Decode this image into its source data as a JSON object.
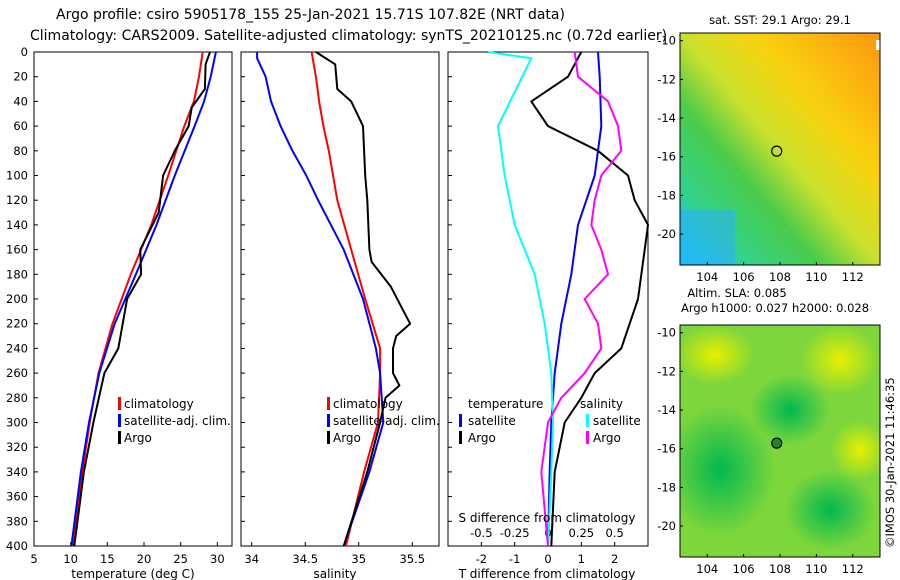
{
  "header": {
    "title_line1": "Argo profile: csiro 5905178_155 25-Jan-2021 15.71S 107.82E (NRT data)",
    "title_line2": "Climatology: CARS2009. Satellite-adjusted climatology: synTS_20210125.nc (0.72d earlier)"
  },
  "colors": {
    "climatology": "#ff0000",
    "satellite": "#0000ff",
    "argo": "#000000",
    "salinity_diff": "#ff00ff",
    "sat_sal": "#00ffff"
  },
  "chart_data": [
    {
      "type": "line",
      "panel": "temperature",
      "xlabel": "temperature (deg C)",
      "ylabel": "",
      "xlim": [
        5,
        32
      ],
      "ylim": [
        400,
        0
      ],
      "xticks": [
        "5",
        "10",
        "15",
        "20",
        "25",
        "30"
      ],
      "yticks": [
        "0",
        "20",
        "40",
        "60",
        "80",
        "100",
        "120",
        "140",
        "160",
        "180",
        "200",
        "220",
        "240",
        "260",
        "280",
        "300",
        "320",
        "340",
        "360",
        "380",
        "400"
      ],
      "legend": [
        "climatology",
        "satellite-adj. clim.",
        "Argo"
      ],
      "series": [
        {
          "name": "climatology",
          "color": "#ff0000",
          "depth": [
            0,
            20,
            40,
            60,
            100,
            140,
            180,
            220,
            260,
            300,
            340,
            400
          ],
          "values": [
            28.0,
            27.5,
            26.8,
            25.5,
            23.3,
            21.0,
            18.2,
            15.7,
            13.8,
            12.6,
            11.6,
            10.3
          ]
        },
        {
          "name": "satellite-adj. clim.",
          "color": "#0000ff",
          "depth": [
            0,
            20,
            40,
            60,
            100,
            140,
            180,
            220,
            260,
            300,
            340,
            400
          ],
          "values": [
            29.8,
            29.1,
            28.2,
            26.9,
            24.2,
            21.7,
            18.9,
            16.0,
            13.9,
            12.5,
            11.4,
            10.1
          ]
        },
        {
          "name": "Argo",
          "color": "#000000",
          "depth": [
            0,
            10,
            30,
            45,
            60,
            80,
            100,
            130,
            160,
            180,
            200,
            240,
            260,
            300,
            340,
            400
          ],
          "values": [
            29.0,
            28.4,
            28.3,
            26.5,
            26.1,
            24.2,
            22.6,
            22.0,
            19.5,
            19.6,
            17.7,
            16.5,
            14.6,
            13.1,
            11.8,
            10.5
          ]
        }
      ]
    },
    {
      "type": "line",
      "panel": "salinity",
      "xlabel": "salinity",
      "ylabel": "",
      "xlim": [
        33.9,
        35.75
      ],
      "ylim": [
        400,
        0
      ],
      "xticks": [
        "34",
        "34.5",
        "35",
        "35.5"
      ],
      "legend": [
        "climatology",
        "satellite-adj. clim.",
        "Argo"
      ],
      "series": [
        {
          "name": "climatology",
          "color": "#ff0000",
          "depth": [
            0,
            20,
            40,
            60,
            80,
            120,
            160,
            200,
            240,
            260,
            300,
            340,
            400
          ],
          "values": [
            34.56,
            34.6,
            34.63,
            34.67,
            34.72,
            34.8,
            34.93,
            35.06,
            35.2,
            35.2,
            35.18,
            35.05,
            34.88
          ]
        },
        {
          "name": "satellite-adj. clim.",
          "color": "#0000ff",
          "depth": [
            0,
            5,
            20,
            40,
            60,
            80,
            100,
            120,
            160,
            200,
            240,
            260,
            300,
            340,
            400
          ],
          "values": [
            34.05,
            34.05,
            34.13,
            34.18,
            34.27,
            34.38,
            34.51,
            34.62,
            34.86,
            35.04,
            35.16,
            35.2,
            35.23,
            35.1,
            34.86
          ]
        },
        {
          "name": "Argo",
          "color": "#000000",
          "depth": [
            0,
            10,
            30,
            40,
            60,
            80,
            100,
            120,
            160,
            170,
            190,
            210,
            220,
            230,
            240,
            260,
            270,
            280,
            300,
            340,
            400
          ],
          "values": [
            34.6,
            34.78,
            34.8,
            34.93,
            35.04,
            35.05,
            35.06,
            35.08,
            35.1,
            35.12,
            35.3,
            35.42,
            35.48,
            35.35,
            35.32,
            35.32,
            35.38,
            35.25,
            35.2,
            35.08,
            34.86
          ]
        }
      ]
    },
    {
      "type": "line",
      "panel": "difference",
      "xlabel": "T difference from climatology",
      "xlabel_top": "S difference from climatology",
      "xlim": [
        -3,
        3
      ],
      "ylim": [
        400,
        0
      ],
      "xticks": [
        "-2",
        "-1",
        "0",
        "1",
        "2"
      ],
      "xticks_top": [
        "-0.5",
        "-0.25",
        "0",
        "0.25",
        "0.5"
      ],
      "legend_left_title": "temperature",
      "legend_right_title": "salinity",
      "legend": [
        "satellite",
        "Argo",
        "satellite",
        "Argo"
      ],
      "series": [
        {
          "name": "T satellite",
          "color": "#0000ff",
          "depth": [
            0,
            20,
            60,
            100,
            140,
            180,
            220,
            260,
            300,
            340,
            400
          ],
          "values": [
            1.5,
            1.55,
            1.6,
            1.4,
            0.9,
            0.7,
            0.4,
            0.2,
            0.1,
            0.05,
            0.0
          ]
        },
        {
          "name": "T Argo",
          "color": "#000000",
          "depth": [
            0,
            20,
            40,
            60,
            80,
            100,
            120,
            140,
            160,
            200,
            240,
            260,
            280,
            300,
            340,
            400
          ],
          "values": [
            1.0,
            0.6,
            -0.5,
            0.0,
            1.5,
            2.4,
            2.6,
            3.0,
            2.9,
            2.7,
            2.2,
            1.4,
            1.0,
            0.5,
            0.2,
            0.1
          ]
        },
        {
          "name": "S satellite",
          "color": "#00ffff",
          "depth": [
            0,
            5,
            60,
            100,
            140,
            180,
            220,
            260,
            300,
            340,
            400
          ],
          "values": [
            -1.8,
            -0.5,
            -1.5,
            -1.3,
            -1.0,
            -0.4,
            -0.1,
            0.1,
            0.15,
            0.1,
            0.0
          ]
        },
        {
          "name": "S Argo",
          "color": "#ff00ff",
          "depth": [
            0,
            20,
            40,
            60,
            80,
            100,
            120,
            140,
            160,
            180,
            200,
            220,
            240,
            260,
            280,
            300,
            340,
            400
          ],
          "values": [
            0.8,
            0.9,
            1.8,
            2.1,
            2.2,
            1.6,
            1.4,
            1.3,
            1.6,
            1.8,
            1.1,
            1.5,
            1.6,
            1.1,
            0.4,
            0.0,
            -0.2,
            0.0
          ]
        }
      ]
    }
  ],
  "maps": {
    "sst": {
      "title": "sat. SST: 29.1 Argo: 29.1",
      "yticks": [
        "-10",
        "-12",
        "-14",
        "-16",
        "-18",
        "-20"
      ],
      "xticks": [
        "104",
        "106",
        "108",
        "110",
        "112"
      ],
      "marker_lon": 107.82,
      "marker_lat": -15.71
    },
    "sla": {
      "title_line1": "Altim. SLA: 0.085",
      "title_line2": "Argo h1000: 0.027 h2000: 0.028",
      "yticks": [
        "-10",
        "-12",
        "-14",
        "-16",
        "-18",
        "-20"
      ],
      "xticks": [
        "104",
        "106",
        "108",
        "110",
        "112"
      ],
      "marker_lon": 107.82,
      "marker_lat": -15.71
    }
  },
  "footer": {
    "stamp": "©IMOS 30-Jan-2021 11:46:35"
  }
}
